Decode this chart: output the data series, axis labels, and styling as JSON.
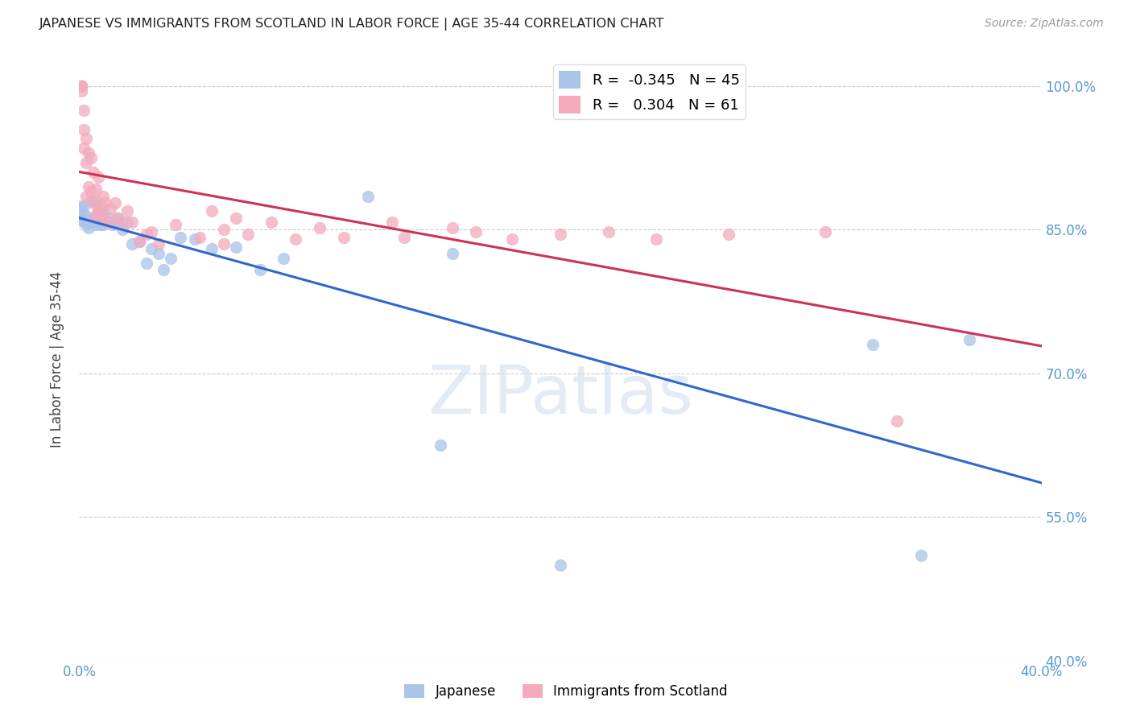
{
  "title": "JAPANESE VS IMMIGRANTS FROM SCOTLAND IN LABOR FORCE | AGE 35-44 CORRELATION CHART",
  "source": "Source: ZipAtlas.com",
  "ylabel": "In Labor Force | Age 35-44",
  "xlim": [
    0.0,
    0.4
  ],
  "ylim": [
    0.4,
    1.03
  ],
  "ytick_positions": [
    0.4,
    0.55,
    0.7,
    0.85,
    1.0
  ],
  "ytick_labels": [
    "40.0%",
    "55.0%",
    "70.0%",
    "85.0%",
    "100.0%"
  ],
  "xtick_positions": [
    0.0,
    0.05,
    0.1,
    0.15,
    0.2,
    0.25,
    0.3,
    0.35,
    0.4
  ],
  "xtick_labels": [
    "0.0%",
    "",
    "",
    "",
    "",
    "",
    "",
    "",
    "40.0%"
  ],
  "grid_color": "#cccccc",
  "background_color": "#ffffff",
  "japanese_color": "#aac4e8",
  "scotland_color": "#f4aabc",
  "japanese_line_color": "#3366cc",
  "scotland_line_color": "#cc3355",
  "legend_R_japanese": "-0.345",
  "legend_N_japanese": "45",
  "legend_R_scotland": "0.304",
  "legend_N_scotland": "61",
  "tick_color": "#5599cc",
  "japanese_x": [
    0.001,
    0.001,
    0.001,
    0.001,
    0.002,
    0.002,
    0.003,
    0.003,
    0.004,
    0.004,
    0.005,
    0.005,
    0.006,
    0.007,
    0.007,
    0.008,
    0.009,
    0.01,
    0.01,
    0.012,
    0.014,
    0.015,
    0.016,
    0.018,
    0.02,
    0.022,
    0.025,
    0.028,
    0.03,
    0.033,
    0.035,
    0.038,
    0.042,
    0.048,
    0.055,
    0.065,
    0.075,
    0.085,
    0.12,
    0.15,
    0.155,
    0.2,
    0.33,
    0.35,
    0.37
  ],
  "japanese_y": [
    0.875,
    0.87,
    0.865,
    0.86,
    0.875,
    0.86,
    0.865,
    0.855,
    0.86,
    0.852,
    0.88,
    0.858,
    0.862,
    0.88,
    0.855,
    0.87,
    0.855,
    0.87,
    0.855,
    0.862,
    0.855,
    0.858,
    0.862,
    0.85,
    0.858,
    0.835,
    0.838,
    0.815,
    0.83,
    0.825,
    0.808,
    0.82,
    0.842,
    0.84,
    0.83,
    0.832,
    0.808,
    0.82,
    0.885,
    0.625,
    0.825,
    0.5,
    0.73,
    0.51,
    0.735
  ],
  "scotland_x": [
    0.001,
    0.001,
    0.001,
    0.001,
    0.001,
    0.001,
    0.001,
    0.001,
    0.002,
    0.002,
    0.002,
    0.003,
    0.003,
    0.003,
    0.004,
    0.004,
    0.005,
    0.005,
    0.006,
    0.006,
    0.007,
    0.007,
    0.008,
    0.008,
    0.009,
    0.01,
    0.01,
    0.011,
    0.012,
    0.013,
    0.015,
    0.016,
    0.018,
    0.02,
    0.022,
    0.025,
    0.028,
    0.03,
    0.033,
    0.04,
    0.05,
    0.055,
    0.06,
    0.06,
    0.065,
    0.07,
    0.08,
    0.09,
    0.1,
    0.11,
    0.13,
    0.135,
    0.155,
    0.165,
    0.18,
    0.2,
    0.22,
    0.24,
    0.27,
    0.31,
    0.34
  ],
  "scotland_y": [
    1.0,
    1.0,
    1.0,
    1.0,
    1.0,
    1.0,
    1.0,
    0.995,
    0.975,
    0.955,
    0.935,
    0.945,
    0.92,
    0.885,
    0.93,
    0.895,
    0.925,
    0.89,
    0.91,
    0.878,
    0.892,
    0.865,
    0.905,
    0.87,
    0.875,
    0.885,
    0.862,
    0.878,
    0.858,
    0.872,
    0.878,
    0.862,
    0.858,
    0.87,
    0.858,
    0.838,
    0.845,
    0.848,
    0.835,
    0.855,
    0.842,
    0.87,
    0.85,
    0.835,
    0.862,
    0.845,
    0.858,
    0.84,
    0.852,
    0.842,
    0.858,
    0.842,
    0.852,
    0.848,
    0.84,
    0.845,
    0.848,
    0.84,
    0.845,
    0.848,
    0.65
  ],
  "watermark_text": "ZIPatlas",
  "watermark_color": "#c8d8ea",
  "watermark_alpha": 0.5
}
